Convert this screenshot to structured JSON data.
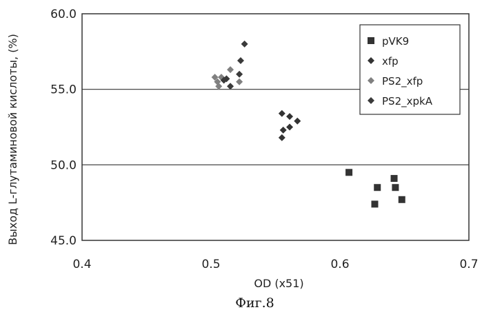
{
  "chart_data": {
    "type": "scatter",
    "xlabel": "OD (x51)",
    "ylabel": "Выход L-глутаминовой кислоты, (%)",
    "caption": "Фиг.8",
    "xlim": [
      0.4,
      0.7
    ],
    "ylim": [
      45.0,
      60.0
    ],
    "x_ticks": [
      "0.4",
      "0.5",
      "0.6",
      "0.7"
    ],
    "y_ticks": [
      "45.0",
      "50.0",
      "55.0",
      "60.0"
    ],
    "grid": "horizontal",
    "legend_position": "top-right",
    "series": [
      {
        "name": "pVK9",
        "marker": "square",
        "color": "#333333",
        "points": [
          [
            0.607,
            49.5
          ],
          [
            0.629,
            48.5
          ],
          [
            0.627,
            47.4
          ],
          [
            0.642,
            49.1
          ],
          [
            0.643,
            48.5
          ],
          [
            0.648,
            47.7
          ]
        ]
      },
      {
        "name": "xfp",
        "marker": "diamond",
        "color": "#333333",
        "points": [
          [
            0.555,
            53.4
          ],
          [
            0.561,
            53.2
          ],
          [
            0.567,
            52.9
          ],
          [
            0.561,
            52.5
          ],
          [
            0.556,
            52.3
          ],
          [
            0.555,
            51.8
          ]
        ]
      },
      {
        "name": "PS2_xfp",
        "marker": "diamond",
        "color": "#808080",
        "points": [
          [
            0.503,
            55.8
          ],
          [
            0.508,
            55.8
          ],
          [
            0.505,
            55.5
          ],
          [
            0.506,
            55.2
          ],
          [
            0.515,
            56.3
          ],
          [
            0.522,
            55.5
          ]
        ]
      },
      {
        "name": "PS2_xpkA",
        "marker": "diamond",
        "color": "#3a3a3a",
        "points": [
          [
            0.526,
            58.0
          ],
          [
            0.523,
            56.9
          ],
          [
            0.522,
            56.0
          ],
          [
            0.512,
            55.7
          ],
          [
            0.51,
            55.6
          ],
          [
            0.515,
            55.2
          ]
        ]
      }
    ]
  }
}
